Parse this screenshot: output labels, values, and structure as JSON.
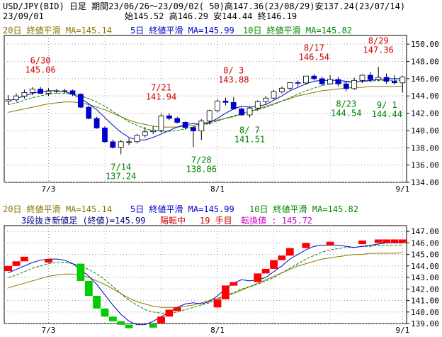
{
  "header": {
    "line1": "USD/JPY(BID) 日足 期間23/06/26～23/09/02( 50)高147.36(23/08/29)安137.24(23/07/14)",
    "date": "23/09/01",
    "ohlc": "始145.52 高146.29 安144.44 終146.19"
  },
  "top_panel": {
    "ma20": "20日 終値平滑 MA=145.14",
    "ma5": "5日 終値平滑 MA=145.99",
    "ma10": "10日 終値平滑 MA=145.82",
    "yticks": [
      "150.00",
      "148.00",
      "146.00",
      "144.00",
      "142.00",
      "140.00",
      "138.00",
      "136.00",
      "134.00"
    ],
    "xticks": [
      "7/3",
      "8/1",
      "9/1"
    ],
    "annotations": [
      {
        "date": "6/30",
        "value": "145.06",
        "color": "#cc0000"
      },
      {
        "date": "7/14",
        "value": "137.24",
        "color": "#008000"
      },
      {
        "date": "7/21",
        "value": "141.94",
        "color": "#cc0000"
      },
      {
        "date": "7/28",
        "value": "138.06",
        "color": "#008000"
      },
      {
        "date": "8/ 3",
        "value": "143.88",
        "color": "#cc0000"
      },
      {
        "date": "8/ 7",
        "value": "141.51",
        "color": "#008000"
      },
      {
        "date": "8/17",
        "value": "146.54",
        "color": "#cc0000"
      },
      {
        "date": "8/23",
        "value": "144.54",
        "color": "#008000"
      },
      {
        "date": "8/29",
        "value": "147.36",
        "color": "#cc0000"
      },
      {
        "date": "9/ 1",
        "value": "144.44",
        "color": "#008000"
      }
    ]
  },
  "bottom_panel": {
    "ma20": "20日 終値平滑 MA=145.14",
    "ma5": "5日 終値平滑 MA=145.99",
    "ma10": "10日 終値平滑 MA=145.82",
    "sanbon_prefix": "3段抜き新値足 (終値)=145.99",
    "sanbon_status": "陽転中",
    "sanbon_count": "19 手目",
    "sanbon_reversal": "転換値 : 145.72",
    "yticks": [
      "147.00",
      "146.00",
      "145.00",
      "144.00",
      "143.00",
      "142.00",
      "141.00",
      "140.00",
      "139.00"
    ],
    "xticks": [
      "7/3",
      "8/1",
      "9/1"
    ]
  },
  "colors": {
    "bull": "#ffffff",
    "bear": "#0000cc",
    "ma5": "#0000cc",
    "ma10": "#008800",
    "ma20": "#8b7500",
    "red_block": "#ff0000",
    "green_block": "#00cc00"
  },
  "chart_data": [
    {
      "type": "candlestick",
      "title": "USD/JPY(BID) 日足",
      "x": [
        "6/26",
        "6/27",
        "6/28",
        "6/29",
        "6/30",
        "7/3",
        "7/4",
        "7/5",
        "7/6",
        "7/7",
        "7/10",
        "7/11",
        "7/12",
        "7/13",
        "7/14",
        "7/17",
        "7/18",
        "7/19",
        "7/20",
        "7/21",
        "7/24",
        "7/25",
        "7/26",
        "7/27",
        "7/28",
        "7/31",
        "8/1",
        "8/2",
        "8/3",
        "8/4",
        "8/7",
        "8/8",
        "8/9",
        "8/10",
        "8/11",
        "8/14",
        "8/15",
        "8/16",
        "8/17",
        "8/18",
        "8/21",
        "8/22",
        "8/23",
        "8/24",
        "8/25",
        "8/28",
        "8/29",
        "8/30",
        "8/31",
        "9/1"
      ],
      "open": [
        143.4,
        143.55,
        144.0,
        144.4,
        144.8,
        144.3,
        144.55,
        144.6,
        144.6,
        144.2,
        142.7,
        141.4,
        140.3,
        138.7,
        138.05,
        138.7,
        138.7,
        139.45,
        139.85,
        140.0,
        141.7,
        141.4,
        140.95,
        140.35,
        139.95,
        141.1,
        142.3,
        143.4,
        143.25,
        142.5,
        141.8,
        142.6,
        143.35,
        143.75,
        144.5,
        144.9,
        145.55,
        145.5,
        146.3,
        146.0,
        145.4,
        145.9,
        145.4,
        144.85,
        145.8,
        146.4,
        145.9,
        146.15,
        145.7,
        145.52
      ],
      "high": [
        144.1,
        144.3,
        144.75,
        145.0,
        145.06,
        144.9,
        144.8,
        144.85,
        144.75,
        144.3,
        142.9,
        141.6,
        140.5,
        138.95,
        138.9,
        139.1,
        139.6,
        140.4,
        140.5,
        141.94,
        142.0,
        141.6,
        141.05,
        140.5,
        141.3,
        142.4,
        143.6,
        143.8,
        143.88,
        142.7,
        142.8,
        143.5,
        144.0,
        144.7,
        145.1,
        145.6,
        145.8,
        146.3,
        146.54,
        146.2,
        146.4,
        146.2,
        145.7,
        146.1,
        146.5,
        146.8,
        147.36,
        146.6,
        146.4,
        146.29
      ],
      "low": [
        143.0,
        143.3,
        143.7,
        144.1,
        144.2,
        144.0,
        144.3,
        144.3,
        144.0,
        142.6,
        141.3,
        140.2,
        138.6,
        137.9,
        137.24,
        138.3,
        138.5,
        139.2,
        139.6,
        139.8,
        141.2,
        140.8,
        140.1,
        138.06,
        138.9,
        140.7,
        142.1,
        142.9,
        142.4,
        141.7,
        141.51,
        142.3,
        143.0,
        143.6,
        144.3,
        144.7,
        145.1,
        145.3,
        145.8,
        145.2,
        145.3,
        145.1,
        144.54,
        144.7,
        145.5,
        145.7,
        145.7,
        145.4,
        145.3,
        144.44
      ],
      "close": [
        143.55,
        144.0,
        144.4,
        144.8,
        144.3,
        144.55,
        144.6,
        144.6,
        144.2,
        142.7,
        141.4,
        140.3,
        138.7,
        138.05,
        138.7,
        138.7,
        139.45,
        139.85,
        140.0,
        141.7,
        141.4,
        140.95,
        140.35,
        139.95,
        141.1,
        142.3,
        143.4,
        143.25,
        142.5,
        141.8,
        142.6,
        143.35,
        143.75,
        144.5,
        144.9,
        145.55,
        145.5,
        146.3,
        146.0,
        145.4,
        145.9,
        145.4,
        144.85,
        145.8,
        146.4,
        145.9,
        146.15,
        145.7,
        145.52,
        146.19
      ],
      "ma5": [
        143.4,
        143.7,
        144.0,
        144.3,
        144.5,
        144.6,
        144.6,
        144.5,
        144.2,
        143.7,
        143.1,
        142.4,
        141.5,
        140.6,
        139.8,
        139.2,
        138.9,
        138.9,
        139.2,
        139.6,
        140.0,
        140.4,
        140.7,
        140.8,
        140.7,
        140.9,
        141.4,
        142.0,
        142.5,
        142.8,
        142.7,
        142.8,
        143.0,
        143.5,
        144.0,
        144.6,
        145.0,
        145.4,
        145.7,
        145.8,
        145.8,
        145.8,
        145.7,
        145.6,
        145.7,
        145.8,
        145.9,
        146.0,
        146.0,
        145.99
      ],
      "ma10": [
        143.0,
        143.2,
        143.5,
        143.8,
        144.0,
        144.2,
        144.3,
        144.3,
        144.2,
        144.0,
        143.7,
        143.3,
        142.8,
        142.2,
        141.6,
        141.0,
        140.6,
        140.2,
        140.0,
        139.9,
        139.9,
        140.0,
        140.2,
        140.4,
        140.6,
        140.8,
        141.1,
        141.4,
        141.7,
        142.0,
        142.2,
        142.4,
        142.7,
        143.0,
        143.4,
        143.8,
        144.2,
        144.6,
        144.9,
        145.2,
        145.4,
        145.5,
        145.6,
        145.6,
        145.7,
        145.7,
        145.8,
        145.8,
        145.8,
        145.82
      ],
      "ma20": [
        142.1,
        142.3,
        142.5,
        142.7,
        142.9,
        143.1,
        143.2,
        143.3,
        143.3,
        143.2,
        143.0,
        142.7,
        142.4,
        142.0,
        141.6,
        141.2,
        140.9,
        140.7,
        140.5,
        140.4,
        140.4,
        140.4,
        140.5,
        140.6,
        140.8,
        141.0,
        141.2,
        141.4,
        141.6,
        141.9,
        142.2,
        142.5,
        142.8,
        143.1,
        143.4,
        143.7,
        144.0,
        144.2,
        144.4,
        144.6,
        144.7,
        144.8,
        144.9,
        145.0,
        145.0,
        145.1,
        145.1,
        145.1,
        145.1,
        145.14
      ],
      "ylim": [
        134,
        151
      ],
      "ylabel": "",
      "xlabel": ""
    },
    {
      "type": "three-line-break",
      "title": "3段抜き新値足 (終値)",
      "bricks": [
        {
          "x": 0,
          "lo": 143.55,
          "hi": 144.0,
          "c": "r"
        },
        {
          "x": 1,
          "lo": 144.0,
          "hi": 144.4,
          "c": "r"
        },
        {
          "x": 2,
          "lo": 144.4,
          "hi": 144.8,
          "c": "r"
        },
        {
          "x": 5,
          "lo": 144.55,
          "hi": 144.6,
          "c": "r"
        },
        {
          "x": 9,
          "lo": 142.7,
          "hi": 144.2,
          "c": "g"
        },
        {
          "x": 10,
          "lo": 141.4,
          "hi": 142.7,
          "c": "g"
        },
        {
          "x": 11,
          "lo": 140.3,
          "hi": 141.4,
          "c": "g"
        },
        {
          "x": 12,
          "lo": 139.6,
          "hi": 140.3,
          "c": "g"
        },
        {
          "x": 13,
          "lo": 139.2,
          "hi": 139.6,
          "c": "g"
        },
        {
          "x": 14,
          "lo": 138.9,
          "hi": 139.2,
          "c": "g"
        },
        {
          "x": 15,
          "lo": 138.75,
          "hi": 138.9,
          "c": "g"
        },
        {
          "x": 18,
          "lo": 138.75,
          "hi": 138.95,
          "c": "g"
        },
        {
          "x": 19,
          "lo": 139.0,
          "hi": 139.6,
          "c": "r"
        },
        {
          "x": 20,
          "lo": 139.6,
          "hi": 140.2,
          "c": "r"
        },
        {
          "x": 21,
          "lo": 140.2,
          "hi": 140.4,
          "c": "r"
        },
        {
          "x": 26,
          "lo": 140.4,
          "hi": 141.1,
          "c": "r"
        },
        {
          "x": 27,
          "lo": 141.1,
          "hi": 142.3,
          "c": "r"
        },
        {
          "x": 28,
          "lo": 142.3,
          "hi": 142.6,
          "c": "r"
        },
        {
          "x": 31,
          "lo": 142.6,
          "hi": 143.35,
          "c": "r"
        },
        {
          "x": 32,
          "lo": 143.35,
          "hi": 143.75,
          "c": "r"
        },
        {
          "x": 33,
          "lo": 143.75,
          "hi": 144.5,
          "c": "r"
        },
        {
          "x": 34,
          "lo": 144.5,
          "hi": 144.9,
          "c": "r"
        },
        {
          "x": 35,
          "lo": 144.9,
          "hi": 145.55,
          "c": "r"
        },
        {
          "x": 37,
          "lo": 145.55,
          "hi": 146.0,
          "c": "r"
        },
        {
          "x": 40,
          "lo": 146.0,
          "hi": 146.1,
          "c": "r"
        },
        {
          "x": 44,
          "lo": 146.1,
          "hi": 146.2,
          "c": "r"
        },
        {
          "x": 46,
          "lo": 146.2,
          "hi": 146.3,
          "c": "r"
        },
        {
          "x": 47,
          "lo": 146.2,
          "hi": 146.3,
          "c": "r"
        },
        {
          "x": 48,
          "lo": 146.2,
          "hi": 146.3,
          "c": "r"
        },
        {
          "x": 49,
          "lo": 146.2,
          "hi": 146.3,
          "c": "r"
        }
      ],
      "ylim": [
        139,
        147.5
      ]
    }
  ]
}
